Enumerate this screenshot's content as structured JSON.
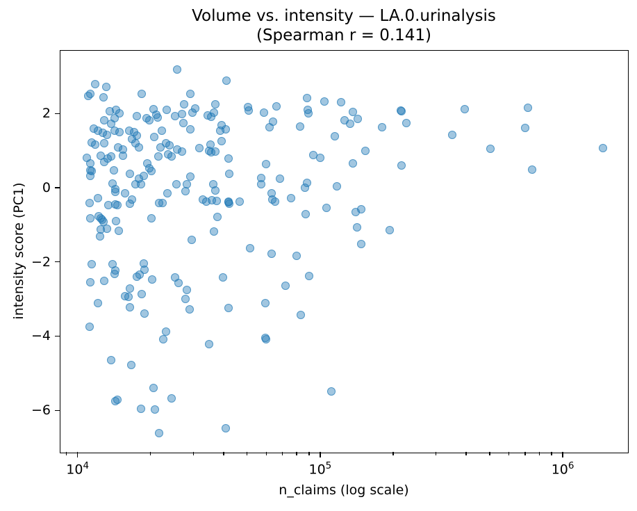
{
  "title": {
    "line1": "Volume vs. intensity — LA.0.urinalysis",
    "line2": "(Spearman r = 0.141)"
  },
  "axes": {
    "x": {
      "label": "n_claims (log scale)",
      "scale": "log",
      "major_ticks": [
        {
          "base": "10",
          "exp": "4",
          "value": 10000
        },
        {
          "base": "10",
          "exp": "5",
          "value": 100000
        },
        {
          "base": "10",
          "exp": "6",
          "value": 1000000
        }
      ]
    },
    "y": {
      "label": "intensity score (PC1)",
      "ticks": [
        {
          "label": "2",
          "value": 2
        },
        {
          "label": "0",
          "value": 0
        },
        {
          "label": "−2",
          "value": -2
        },
        {
          "label": "−4",
          "value": -4
        },
        {
          "label": "−6",
          "value": -6
        }
      ]
    }
  },
  "chart_data": {
    "type": "scatter",
    "title": "Volume vs. intensity — LA.0.urinalysis (Spearman r = 0.141)",
    "xlabel": "n_claims (log scale)",
    "ylabel": "intensity score (PC1)",
    "x_scale": "log",
    "xlim": [
      8500,
      1845000
    ],
    "ylim": [
      -7.12,
      3.69
    ],
    "grid": false,
    "legend": "none",
    "marker_color": "#1f77b4",
    "marker_alpha": 0.5,
    "points": [
      [
        11100,
        2.48
      ],
      [
        12800,
        2.43
      ],
      [
        13600,
        2.06
      ],
      [
        14400,
        2.09
      ],
      [
        14900,
        2.0
      ],
      [
        14200,
        1.87
      ],
      [
        12900,
        1.81
      ],
      [
        13800,
        1.73
      ],
      [
        20500,
        2.12
      ],
      [
        21100,
        1.97
      ],
      [
        21400,
        1.9
      ],
      [
        23300,
        2.09
      ],
      [
        17500,
        1.93
      ],
      [
        19200,
        1.87
      ],
      [
        19800,
        1.81
      ],
      [
        25200,
        1.93
      ],
      [
        27400,
        2.25
      ],
      [
        11700,
        1.59
      ],
      [
        12100,
        1.53
      ],
      [
        12700,
        1.47
      ],
      [
        13200,
        1.42
      ],
      [
        14200,
        1.53
      ],
      [
        14900,
        1.5
      ],
      [
        16300,
        1.53
      ],
      [
        17100,
        1.5
      ],
      [
        17500,
        1.4
      ],
      [
        16800,
        1.31
      ],
      [
        22300,
        1.53
      ],
      [
        20700,
        1.37
      ],
      [
        11400,
        1.22
      ],
      [
        11800,
        1.17
      ],
      [
        12900,
        1.19
      ],
      [
        14700,
        1.09
      ],
      [
        15400,
        1.03
      ],
      [
        17300,
        1.19
      ],
      [
        17900,
        1.09
      ],
      [
        21900,
        1.09
      ],
      [
        23100,
        1.19
      ],
      [
        23900,
        1.14
      ],
      [
        25800,
        1.03
      ],
      [
        26900,
        0.97
      ],
      [
        10900,
        0.81
      ],
      [
        11300,
        0.66
      ],
      [
        12500,
        0.87
      ],
      [
        13300,
        0.78
      ],
      [
        13800,
        0.84
      ],
      [
        12900,
        0.69
      ],
      [
        15400,
        0.87
      ],
      [
        21600,
        0.84
      ],
      [
        23600,
        0.9
      ],
      [
        24400,
        0.84
      ],
      [
        11300,
        0.47
      ],
      [
        11400,
        0.44
      ],
      [
        14100,
        0.47
      ],
      [
        19400,
        0.66
      ],
      [
        19800,
        0.53
      ],
      [
        20200,
        0.44
      ],
      [
        16400,
        0.37
      ],
      [
        17300,
        0.09
      ],
      [
        17900,
        0.25
      ],
      [
        18700,
        0.31
      ],
      [
        11300,
        0.31
      ],
      [
        13900,
        0.12
      ],
      [
        18300,
        0.09
      ],
      [
        25600,
        0.09
      ],
      [
        25800,
        3.19
      ],
      [
        11800,
        2.8
      ],
      [
        13100,
        2.71
      ],
      [
        11300,
        2.53
      ],
      [
        18400,
        2.53
      ],
      [
        29200,
        2.53
      ],
      [
        30500,
        2.13
      ],
      [
        27000,
        1.99
      ],
      [
        29800,
        2.02
      ],
      [
        34400,
        1.94
      ],
      [
        27300,
        1.75
      ],
      [
        29200,
        1.57
      ],
      [
        31800,
        1.06
      ],
      [
        34800,
        1.0
      ],
      [
        29200,
        0.29
      ],
      [
        41200,
        2.88
      ],
      [
        37100,
        2.24
      ],
      [
        36600,
        2.02
      ],
      [
        35500,
        1.91
      ],
      [
        50400,
        2.17
      ],
      [
        50700,
        2.07
      ],
      [
        58500,
        2.02
      ],
      [
        65900,
        2.19
      ],
      [
        88300,
        2.41
      ],
      [
        88900,
        2.1
      ],
      [
        89300,
        2.0
      ],
      [
        104000,
        2.33
      ],
      [
        122000,
        2.3
      ],
      [
        136000,
        2.04
      ],
      [
        126000,
        1.81
      ],
      [
        133000,
        1.72
      ],
      [
        64000,
        1.78
      ],
      [
        61700,
        1.62
      ],
      [
        39200,
        1.69
      ],
      [
        40900,
        1.57
      ],
      [
        38700,
        1.54
      ],
      [
        82400,
        1.64
      ],
      [
        115000,
        1.39
      ],
      [
        39200,
        1.25
      ],
      [
        35300,
        1.16
      ],
      [
        35600,
        0.96
      ],
      [
        37000,
        0.97
      ],
      [
        41800,
        0.79
      ],
      [
        93400,
        0.88
      ],
      [
        99800,
        0.81
      ],
      [
        59900,
        0.63
      ],
      [
        42300,
        0.38
      ],
      [
        57300,
        0.27
      ],
      [
        68400,
        0.24
      ],
      [
        136000,
        0.65
      ],
      [
        36300,
        0.1
      ],
      [
        88300,
        0.13
      ],
      [
        215000,
        2.08
      ],
      [
        216000,
        2.06
      ],
      [
        143000,
        1.86
      ],
      [
        180000,
        1.63
      ],
      [
        227000,
        1.75
      ],
      [
        395000,
        2.11
      ],
      [
        350000,
        1.43
      ],
      [
        504000,
        1.04
      ],
      [
        154000,
        0.99
      ],
      [
        217000,
        0.59
      ],
      [
        719000,
        2.15
      ],
      [
        698000,
        1.61
      ],
      [
        1460000,
        1.07
      ],
      [
        748000,
        0.49
      ],
      [
        14300,
        -0.04
      ],
      [
        14300,
        -0.11
      ],
      [
        15700,
        -0.16
      ],
      [
        16800,
        -0.32
      ],
      [
        16400,
        -0.44
      ],
      [
        11200,
        -0.41
      ],
      [
        12100,
        -0.28
      ],
      [
        13400,
        -0.47
      ],
      [
        14300,
        -0.45
      ],
      [
        14600,
        -0.47
      ],
      [
        23400,
        -0.15
      ],
      [
        21700,
        -0.41
      ],
      [
        22400,
        -0.42
      ],
      [
        28200,
        0.09
      ],
      [
        27900,
        -0.1
      ],
      [
        32900,
        -0.32
      ],
      [
        34000,
        -0.38
      ],
      [
        11300,
        -0.82
      ],
      [
        12200,
        -0.77
      ],
      [
        12500,
        -0.82
      ],
      [
        12600,
        -0.86
      ],
      [
        12800,
        -0.91
      ],
      [
        14400,
        -0.9
      ],
      [
        20100,
        -0.82
      ],
      [
        12500,
        -1.13
      ],
      [
        13200,
        -1.1
      ],
      [
        14800,
        -1.16
      ],
      [
        12400,
        -1.32
      ],
      [
        29500,
        -1.4
      ],
      [
        11400,
        -2.07
      ],
      [
        13900,
        -2.07
      ],
      [
        14300,
        -2.23
      ],
      [
        14200,
        -2.32
      ],
      [
        18700,
        -2.05
      ],
      [
        18900,
        -2.22
      ],
      [
        18000,
        -2.35
      ],
      [
        17600,
        -2.4
      ],
      [
        11300,
        -2.55
      ],
      [
        12900,
        -2.52
      ],
      [
        20300,
        -2.47
      ],
      [
        25300,
        -2.41
      ],
      [
        26100,
        -2.57
      ],
      [
        16400,
        -2.72
      ],
      [
        15700,
        -2.92
      ],
      [
        16200,
        -2.94
      ],
      [
        18400,
        -2.87
      ],
      [
        28200,
        -2.75
      ],
      [
        27900,
        -3.0
      ],
      [
        12100,
        -3.11
      ],
      [
        16400,
        -3.22
      ],
      [
        29000,
        -3.28
      ],
      [
        18900,
        -3.39
      ],
      [
        37000,
        -0.07
      ],
      [
        35800,
        -0.34
      ],
      [
        37400,
        -0.35
      ],
      [
        41900,
        -0.38
      ],
      [
        42000,
        -0.4
      ],
      [
        42300,
        -0.44
      ],
      [
        46600,
        -0.38
      ],
      [
        37600,
        -0.79
      ],
      [
        36600,
        -1.18
      ],
      [
        57300,
        0.1
      ],
      [
        63000,
        -0.15
      ],
      [
        65100,
        -0.38
      ],
      [
        63400,
        -0.32
      ],
      [
        75700,
        -0.29
      ],
      [
        86300,
        -0.01
      ],
      [
        117000,
        0.04
      ],
      [
        87400,
        -0.72
      ],
      [
        106000,
        -0.54
      ],
      [
        140000,
        -0.66
      ],
      [
        148000,
        -0.58
      ],
      [
        142000,
        -1.06
      ],
      [
        51300,
        -1.63
      ],
      [
        63000,
        -1.78
      ],
      [
        80200,
        -1.84
      ],
      [
        39700,
        -2.42
      ],
      [
        90200,
        -2.38
      ],
      [
        71800,
        -2.65
      ],
      [
        42000,
        -3.24
      ],
      [
        59300,
        -3.12
      ],
      [
        83400,
        -3.43
      ],
      [
        194000,
        -1.14
      ],
      [
        148000,
        -1.52
      ],
      [
        11200,
        -3.75
      ],
      [
        23200,
        -3.87
      ],
      [
        22600,
        -4.09
      ],
      [
        34800,
        -4.21
      ],
      [
        13800,
        -4.64
      ],
      [
        16600,
        -4.78
      ],
      [
        20500,
        -5.4
      ],
      [
        14300,
        -5.76
      ],
      [
        14600,
        -5.72
      ],
      [
        18300,
        -5.95
      ],
      [
        20900,
        -5.97
      ],
      [
        24400,
        -5.68
      ],
      [
        21700,
        -6.62
      ],
      [
        59300,
        -4.04
      ],
      [
        59800,
        -4.09
      ],
      [
        111000,
        -5.49
      ],
      [
        40800,
        -6.48
      ]
    ]
  }
}
